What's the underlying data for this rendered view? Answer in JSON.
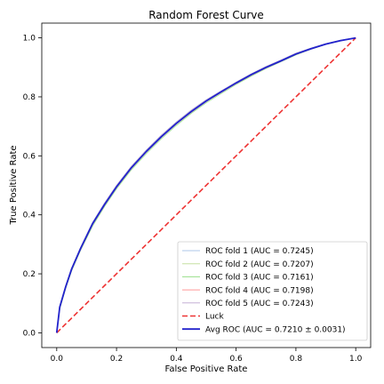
{
  "chart_data": {
    "type": "line",
    "title": "Random Forest Curve",
    "xlabel": "False Positive Rate",
    "ylabel": "True Positive Rate",
    "xlim": [
      -0.05,
      1.05
    ],
    "ylim": [
      -0.05,
      1.05
    ],
    "xticks": [
      "0.0",
      "0.2",
      "0.4",
      "0.6",
      "0.8",
      "1.0"
    ],
    "yticks": [
      "0.0",
      "0.2",
      "0.4",
      "0.6",
      "0.8",
      "1.0"
    ],
    "legend_position": "lower-right",
    "grid": false,
    "series": [
      {
        "name": "ROC fold 1 (AUC = 0.7245)",
        "color": "#aec7e8",
        "style": "solid",
        "x": [
          0,
          0.01,
          0.03,
          0.05,
          0.08,
          0.12,
          0.16,
          0.2,
          0.25,
          0.3,
          0.35,
          0.4,
          0.45,
          0.5,
          0.55,
          0.6,
          0.65,
          0.7,
          0.75,
          0.8,
          0.85,
          0.9,
          0.95,
          1.0
        ],
        "y": [
          0,
          0.09,
          0.16,
          0.22,
          0.29,
          0.375,
          0.44,
          0.5,
          0.565,
          0.62,
          0.67,
          0.715,
          0.755,
          0.79,
          0.82,
          0.85,
          0.878,
          0.903,
          0.925,
          0.948,
          0.965,
          0.98,
          0.992,
          1.0
        ]
      },
      {
        "name": "ROC fold 2 (AUC = 0.7207)",
        "color": "#c5e0a0",
        "style": "solid",
        "x": [
          0,
          0.01,
          0.03,
          0.05,
          0.08,
          0.12,
          0.16,
          0.2,
          0.25,
          0.3,
          0.35,
          0.4,
          0.45,
          0.5,
          0.55,
          0.6,
          0.65,
          0.7,
          0.75,
          0.8,
          0.85,
          0.9,
          0.95,
          1.0
        ],
        "y": [
          0,
          0.085,
          0.155,
          0.215,
          0.285,
          0.37,
          0.435,
          0.495,
          0.56,
          0.615,
          0.665,
          0.71,
          0.75,
          0.785,
          0.816,
          0.846,
          0.874,
          0.899,
          0.922,
          0.945,
          0.963,
          0.979,
          0.991,
          1.0
        ]
      },
      {
        "name": "ROC fold 3 (AUC = 0.7161)",
        "color": "#98df8a",
        "style": "solid",
        "x": [
          0,
          0.01,
          0.03,
          0.05,
          0.08,
          0.12,
          0.16,
          0.2,
          0.25,
          0.3,
          0.35,
          0.4,
          0.45,
          0.5,
          0.55,
          0.6,
          0.65,
          0.7,
          0.75,
          0.8,
          0.85,
          0.9,
          0.95,
          1.0
        ],
        "y": [
          0,
          0.08,
          0.15,
          0.21,
          0.28,
          0.362,
          0.428,
          0.488,
          0.553,
          0.608,
          0.658,
          0.703,
          0.744,
          0.78,
          0.811,
          0.842,
          0.87,
          0.896,
          0.919,
          0.942,
          0.961,
          0.978,
          0.99,
          1.0
        ]
      },
      {
        "name": "ROC fold 4 (AUC = 0.7198)",
        "color": "#ff9896",
        "style": "solid",
        "x": [
          0,
          0.01,
          0.03,
          0.05,
          0.08,
          0.12,
          0.16,
          0.2,
          0.25,
          0.3,
          0.35,
          0.4,
          0.45,
          0.5,
          0.55,
          0.6,
          0.65,
          0.7,
          0.75,
          0.8,
          0.85,
          0.9,
          0.95,
          1.0
        ],
        "y": [
          0,
          0.085,
          0.155,
          0.215,
          0.284,
          0.368,
          0.433,
          0.493,
          0.558,
          0.613,
          0.663,
          0.708,
          0.748,
          0.784,
          0.815,
          0.845,
          0.873,
          0.898,
          0.921,
          0.944,
          0.962,
          0.979,
          0.991,
          1.0
        ]
      },
      {
        "name": "ROC fold 5 (AUC = 0.7243)",
        "color": "#c5b0d5",
        "style": "solid",
        "x": [
          0,
          0.01,
          0.03,
          0.05,
          0.08,
          0.12,
          0.16,
          0.2,
          0.25,
          0.3,
          0.35,
          0.4,
          0.45,
          0.5,
          0.55,
          0.6,
          0.65,
          0.7,
          0.75,
          0.8,
          0.85,
          0.9,
          0.95,
          1.0
        ],
        "y": [
          0,
          0.09,
          0.16,
          0.22,
          0.29,
          0.374,
          0.44,
          0.5,
          0.565,
          0.62,
          0.67,
          0.715,
          0.755,
          0.79,
          0.82,
          0.85,
          0.878,
          0.903,
          0.925,
          0.948,
          0.965,
          0.98,
          0.992,
          1.0
        ]
      },
      {
        "name": "Luck",
        "color": "#ee3333",
        "style": "dashed",
        "x": [
          0,
          1
        ],
        "y": [
          0,
          1
        ]
      },
      {
        "name": "Avg ROC (AUC = 0.7210 ± 0.0031)",
        "color": "#2222cc",
        "style": "solid-bold",
        "x": [
          0,
          0.01,
          0.03,
          0.05,
          0.08,
          0.12,
          0.16,
          0.2,
          0.25,
          0.3,
          0.35,
          0.4,
          0.45,
          0.5,
          0.55,
          0.6,
          0.65,
          0.7,
          0.75,
          0.8,
          0.85,
          0.9,
          0.95,
          1.0
        ],
        "y": [
          0,
          0.087,
          0.156,
          0.216,
          0.286,
          0.37,
          0.435,
          0.495,
          0.56,
          0.615,
          0.665,
          0.71,
          0.75,
          0.786,
          0.817,
          0.847,
          0.875,
          0.9,
          0.922,
          0.945,
          0.963,
          0.979,
          0.991,
          1.0
        ]
      }
    ]
  }
}
